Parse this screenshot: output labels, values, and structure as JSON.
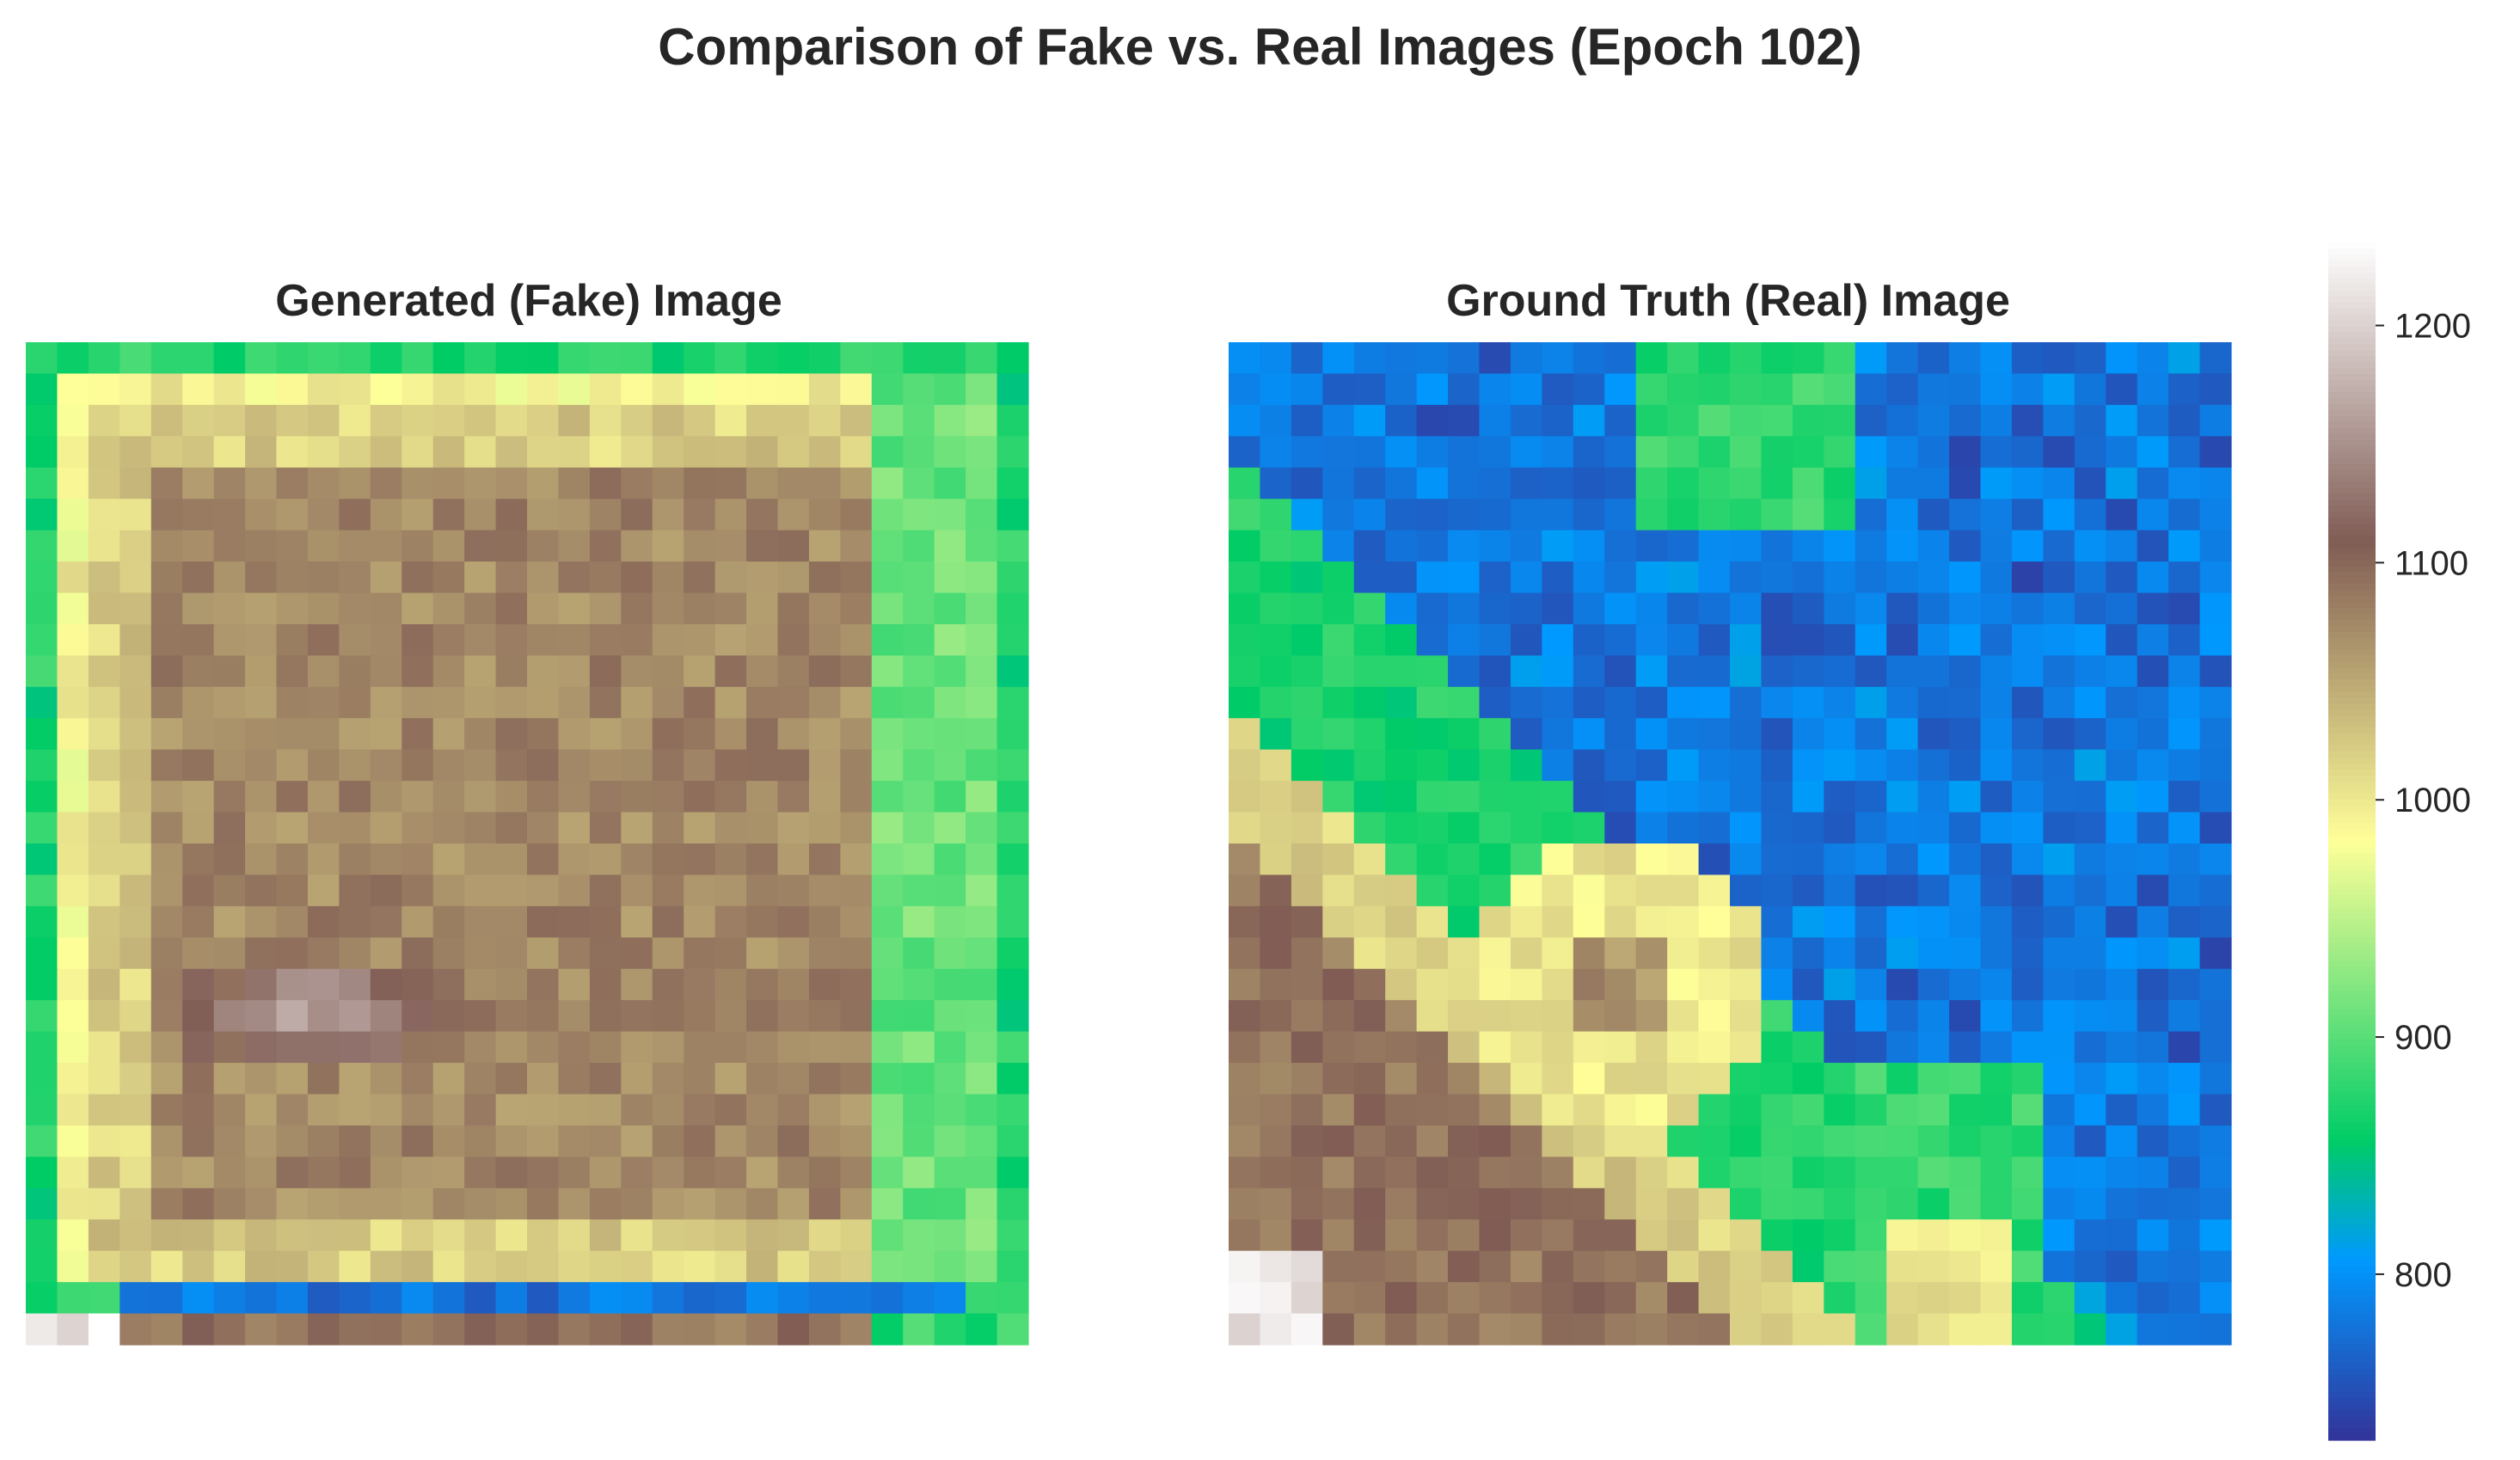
{
  "figure": {
    "title": "Comparison of Fake vs. Real Images (Epoch 102)"
  },
  "chart_data": [
    {
      "type": "heatmap",
      "title": "Generated (Fake) Image",
      "grid_size": [
        32,
        32
      ],
      "colormap": "terrain",
      "value_range": [
        730,
        1235
      ],
      "pattern": "square-frame",
      "values_description_levels": {
        "outer_ring": 880,
        "blue_bottom_row": 780,
        "yellow_frame": 1010,
        "inner_brown": 1075,
        "highlight": 1160,
        "corner_white": 1220
      }
    },
    {
      "type": "heatmap",
      "title": "Ground Truth (Real) Image",
      "grid_size": [
        32,
        32
      ],
      "colormap": "terrain",
      "value_range": [
        730,
        1235
      ],
      "pattern": "terrain-landscape",
      "values_description_levels": {
        "blue_region": 760,
        "green_region": 880,
        "yellow_region": 1000,
        "brown_region": 1090,
        "white_corner": 1210
      }
    }
  ],
  "colorbar": {
    "min": 730,
    "max": 1235,
    "ticks": [
      "800",
      "900",
      "1000",
      "1100",
      "1200"
    ],
    "tick_values": [
      800,
      900,
      1000,
      1100,
      1200
    ]
  }
}
